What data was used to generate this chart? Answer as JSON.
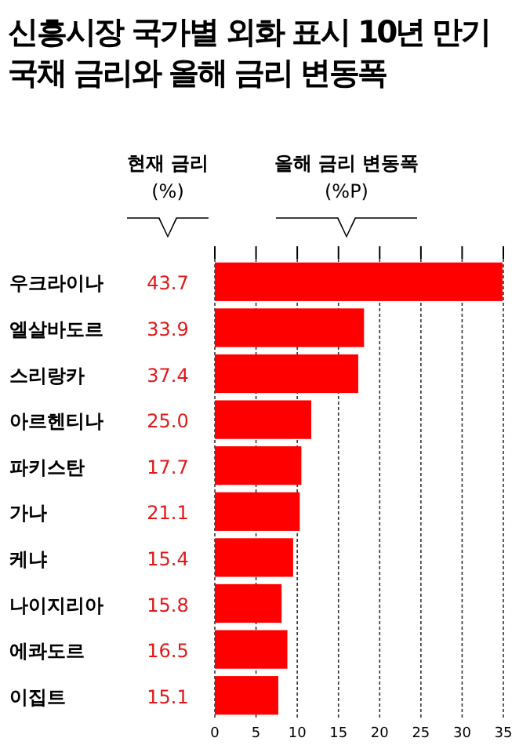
{
  "chart_data": [
    {
      "type": "other",
      "title": "신흥시장 국가별 외화 표시 10년 만기 국채 금리와 올해 금리 변동폭",
      "subtitle": "현재 금리 (%)",
      "values": [
        43.7,
        33.9,
        37.4,
        25.0,
        17.7,
        21.1,
        15.4,
        15.8,
        16.5,
        15.1
      ],
      "color": "#e01818",
      "value_labels": [
        "43.7",
        "33.9",
        "37.4",
        "25.0",
        "17.7",
        "21.1",
        "15.4",
        "15.8",
        "16.5",
        "15.1"
      ]
    },
    {
      "type": "bar",
      "orientation": "horizontal",
      "subtitle": "올해 금리 변동폭 (%P)",
      "categories": [
        "우크라이나",
        "엘살바도르",
        "스리랑카",
        "아르헨티나",
        "파키스탄",
        "가나",
        "케냐",
        "나이지리아",
        "에콰도르",
        "이집트"
      ],
      "values": [
        34.9,
        18.1,
        17.4,
        11.7,
        10.5,
        10.3,
        9.5,
        8.1,
        8.8,
        7.7
      ],
      "color": "#ff0000",
      "xlim": [
        0,
        35
      ],
      "xticks": [
        0,
        5,
        10,
        15,
        20,
        25,
        30,
        35
      ],
      "grid": "x"
    }
  ]
}
